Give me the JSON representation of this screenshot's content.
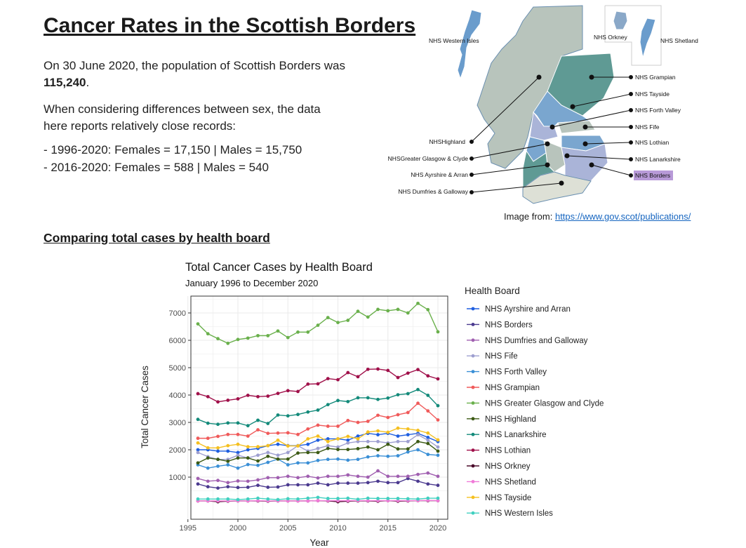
{
  "title": "Cancer Rates in the Scottish Borders",
  "intro": {
    "population_prefix": "On 30 June 2020, the population of Scottish Borders was ",
    "population_value": "115,240",
    "population_suffix": ".",
    "sex_note": "When considering differences between sex, the data here reports relatively close records:",
    "records": [
      "- 1996-2020: Females = 17,150 | Males = 15,750",
      "- 2016-2020: Females = 588 | Males = 540"
    ]
  },
  "map": {
    "labels": {
      "western_isles": "NHS Western Isles",
      "orkney": "NHS Orkney",
      "shetland": "NHS Shetland",
      "grampian": "NHS Grampian",
      "tayside": "NHS Tayside",
      "forth_valley": "NHS Forth Valley",
      "fife": "NHS Fife",
      "lothian": "NHS Lothian",
      "lanarkshire": "NHS Lanarkshire",
      "borders": "NHS Borders",
      "highland": "NHSHighland",
      "ggc": "NHSGreater Glasgow & Clyde",
      "ayrshire": "NHS Ayrshire & Arran",
      "dg": "NHS Dumfries & Galloway"
    },
    "highlight_color": "#b89ad8",
    "credit_label": "Image from: ",
    "credit_link": "https://www.gov.scot/publications/"
  },
  "section_heading": "Comparing total cases by health board",
  "chart_data": {
    "type": "line",
    "title": "Total Cancer Cases by Health Board",
    "subtitle": "January 1996 to December 2020",
    "xlabel": "Year",
    "ylabel": "Total Cancer Cases",
    "legend_title": "Health Board",
    "legend_position": "right",
    "grid": true,
    "xlim": [
      1995,
      2021
    ],
    "ylim": [
      0,
      7500
    ],
    "xticks": [
      1995,
      2000,
      2005,
      2010,
      2015,
      2020
    ],
    "yticks": [
      1000,
      2000,
      3000,
      4000,
      5000,
      6000,
      7000
    ],
    "x": [
      1996,
      1997,
      1998,
      1999,
      2000,
      2001,
      2002,
      2003,
      2004,
      2005,
      2006,
      2007,
      2008,
      2009,
      2010,
      2011,
      2012,
      2013,
      2014,
      2015,
      2016,
      2017,
      2018,
      2019,
      2020
    ],
    "series": [
      {
        "name": "NHS Ayrshire and Arran",
        "color": "#1f5fe0",
        "values": [
          2000,
          2000,
          1950,
          1950,
          1900,
          2000,
          2050,
          2150,
          2200,
          2150,
          2150,
          2200,
          2350,
          2400,
          2400,
          2350,
          2500,
          2600,
          2550,
          2600,
          2500,
          2550,
          2600,
          2450,
          2300
        ]
      },
      {
        "name": "NHS Borders",
        "color": "#4b3a8f",
        "values": [
          750,
          650,
          600,
          650,
          620,
          630,
          700,
          630,
          640,
          720,
          720,
          720,
          780,
          720,
          780,
          780,
          780,
          800,
          850,
          800,
          800,
          950,
          850,
          750,
          700
        ]
      },
      {
        "name": "NHS Dumfries and Galloway",
        "color": "#a05fb0",
        "values": [
          950,
          850,
          880,
          800,
          860,
          850,
          900,
          980,
          980,
          1030,
          980,
          1030,
          970,
          1030,
          1030,
          1080,
          1030,
          1000,
          1230,
          1030,
          1030,
          1030,
          1100,
          1150,
          1030
        ]
      },
      {
        "name": "NHS Fife",
        "color": "#9e9fd0",
        "values": [
          1900,
          1750,
          1650,
          1650,
          1800,
          1700,
          1800,
          1900,
          1800,
          1900,
          2150,
          1950,
          2050,
          2150,
          2100,
          2250,
          2300,
          2300,
          2300,
          2250,
          2300,
          2300,
          2550,
          2350,
          2100
        ]
      },
      {
        "name": "NHS Forth Valley",
        "color": "#3a8fd6",
        "values": [
          1450,
          1330,
          1400,
          1450,
          1330,
          1460,
          1430,
          1540,
          1660,
          1450,
          1520,
          1520,
          1610,
          1650,
          1660,
          1620,
          1650,
          1740,
          1780,
          1760,
          1780,
          1920,
          2000,
          1830,
          1800
        ]
      },
      {
        "name": "NHS Grampian",
        "color": "#f05a5a",
        "values": [
          2420,
          2420,
          2490,
          2560,
          2560,
          2500,
          2730,
          2600,
          2610,
          2620,
          2560,
          2760,
          2900,
          2860,
          2860,
          3070,
          3000,
          3040,
          3260,
          3180,
          3280,
          3360,
          3700,
          3420,
          3090
        ]
      },
      {
        "name": "NHS Greater Glasgow and Clyde",
        "color": "#6ab04c",
        "values": [
          6600,
          6240,
          6060,
          5890,
          6030,
          6080,
          6170,
          6170,
          6340,
          6100,
          6300,
          6300,
          6550,
          6830,
          6650,
          6730,
          7060,
          6850,
          7130,
          7080,
          7130,
          7000,
          7350,
          7120,
          6310
        ]
      },
      {
        "name": "NHS Highland",
        "color": "#3c5a14",
        "values": [
          1520,
          1700,
          1650,
          1580,
          1700,
          1700,
          1590,
          1760,
          1660,
          1660,
          1880,
          1900,
          1900,
          2050,
          2010,
          2010,
          2040,
          2100,
          2000,
          2200,
          2030,
          2030,
          2300,
          2230,
          1950
        ]
      },
      {
        "name": "NHS Lanarkshire",
        "color": "#138a7a",
        "values": [
          3110,
          2970,
          2930,
          2980,
          2980,
          2880,
          3080,
          2960,
          3270,
          3240,
          3290,
          3380,
          3450,
          3650,
          3800,
          3760,
          3900,
          3900,
          3840,
          3890,
          4010,
          4050,
          4200,
          3990,
          3610
        ]
      },
      {
        "name": "NHS Lothian",
        "color": "#a0104a",
        "values": [
          4050,
          3940,
          3750,
          3810,
          3860,
          3990,
          3940,
          3960,
          4060,
          4160,
          4130,
          4400,
          4410,
          4600,
          4560,
          4820,
          4670,
          4940,
          4950,
          4900,
          4640,
          4800,
          4930,
          4700,
          4590
        ]
      },
      {
        "name": "NHS Orkney",
        "color": "#4a0a2a",
        "values": [
          130,
          130,
          100,
          120,
          130,
          130,
          130,
          120,
          130,
          130,
          130,
          130,
          140,
          130,
          100,
          120,
          130,
          130,
          120,
          140,
          120,
          130,
          140,
          140,
          140
        ]
      },
      {
        "name": "NHS Shetland",
        "color": "#f07ad8",
        "values": [
          130,
          130,
          130,
          130,
          130,
          130,
          140,
          130,
          130,
          130,
          130,
          130,
          140,
          140,
          140,
          140,
          140,
          140,
          140,
          140,
          140,
          140,
          140,
          150,
          140
        ]
      },
      {
        "name": "NHS Tayside",
        "color": "#f5c020",
        "values": [
          2250,
          2070,
          2070,
          2150,
          2200,
          2110,
          2110,
          2150,
          2350,
          2140,
          2140,
          2400,
          2500,
          2300,
          2400,
          2490,
          2400,
          2650,
          2690,
          2640,
          2790,
          2760,
          2710,
          2610,
          2360
        ]
      },
      {
        "name": "NHS Western Isles",
        "color": "#40d0c0",
        "values": [
          200,
          200,
          200,
          200,
          180,
          200,
          230,
          200,
          180,
          210,
          200,
          230,
          260,
          220,
          220,
          230,
          190,
          230,
          220,
          220,
          220,
          210,
          200,
          230,
          230
        ]
      }
    ]
  }
}
